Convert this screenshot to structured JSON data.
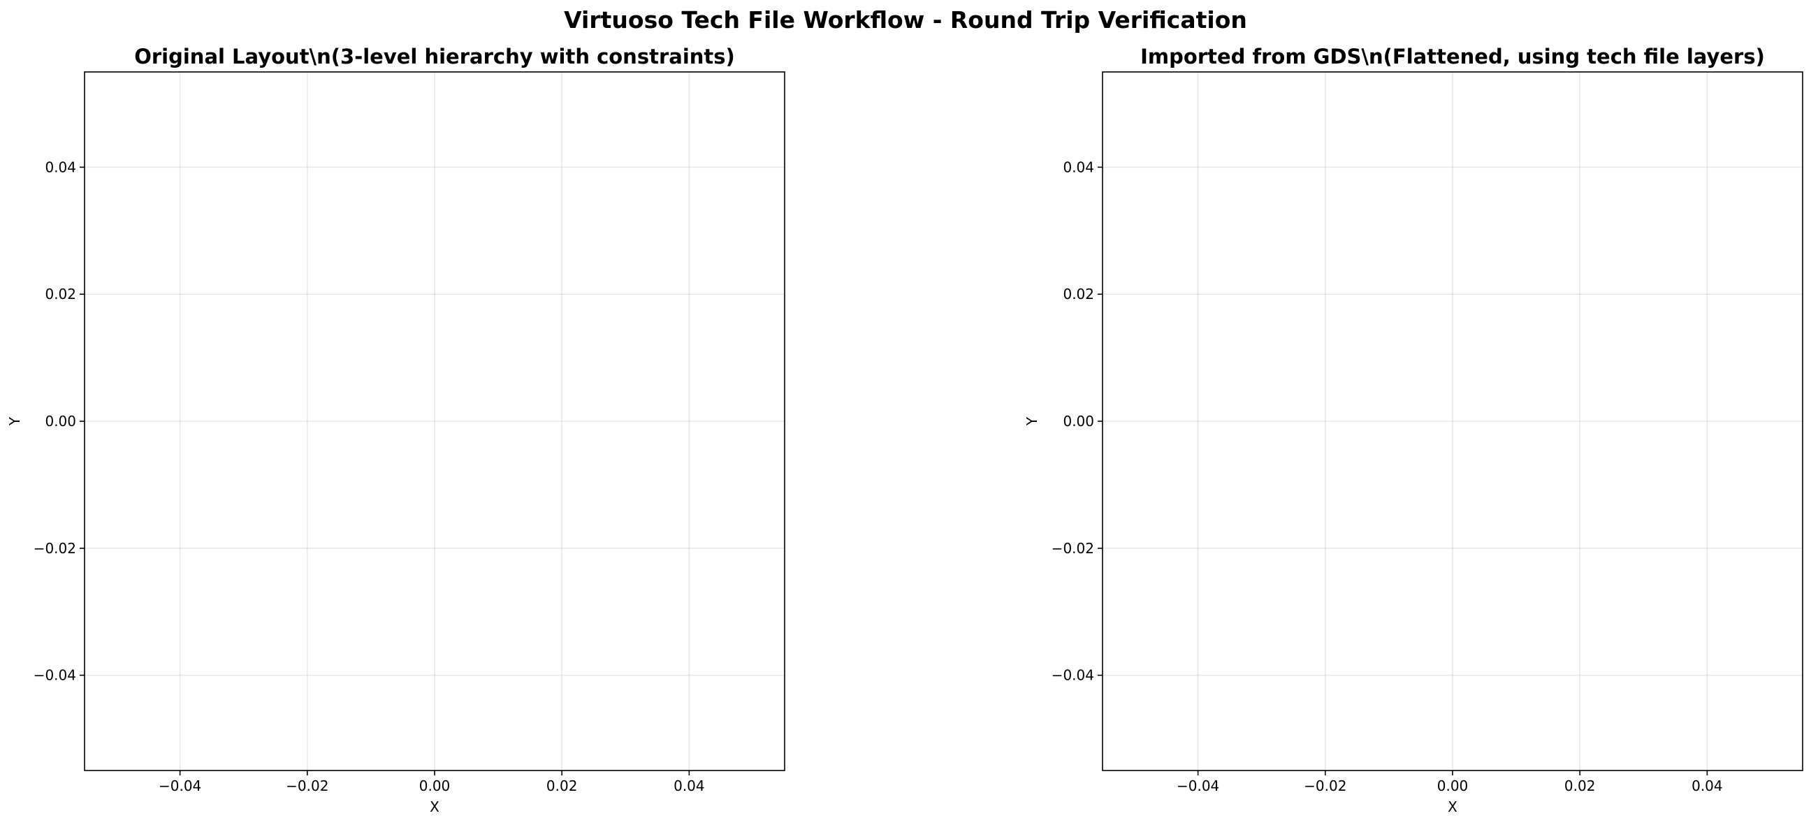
{
  "figure": {
    "title": "Virtuoso Tech File Workflow - Round Trip Verification"
  },
  "chart_data": [
    {
      "type": "scatter",
      "title": "Original Layout\\n(3-level hierarchy with constraints)",
      "xlabel": "X",
      "ylabel": "Y",
      "xlim": [
        -0.055,
        0.055
      ],
      "ylim": [
        -0.055,
        0.055
      ],
      "xticks": [
        -0.04,
        -0.02,
        0.0,
        0.02,
        0.04
      ],
      "yticks": [
        -0.04,
        -0.02,
        0.0,
        0.02,
        0.04
      ],
      "xtick_labels": [
        "−0.04",
        "−0.02",
        "0.00",
        "0.02",
        "0.04"
      ],
      "ytick_labels": [
        "−0.04",
        "−0.02",
        "0.00",
        "0.02",
        "0.04"
      ],
      "grid": true,
      "series": []
    },
    {
      "type": "scatter",
      "title": "Imported from GDS\\n(Flattened, using tech file layers)",
      "xlabel": "X",
      "ylabel": "Y",
      "xlim": [
        -0.055,
        0.055
      ],
      "ylim": [
        -0.055,
        0.055
      ],
      "xticks": [
        -0.04,
        -0.02,
        0.0,
        0.02,
        0.04
      ],
      "yticks": [
        -0.04,
        -0.02,
        0.0,
        0.02,
        0.04
      ],
      "xtick_labels": [
        "−0.04",
        "−0.02",
        "0.00",
        "0.02",
        "0.04"
      ],
      "ytick_labels": [
        "−0.04",
        "−0.02",
        "0.00",
        "0.02",
        "0.04"
      ],
      "grid": true,
      "series": []
    }
  ]
}
